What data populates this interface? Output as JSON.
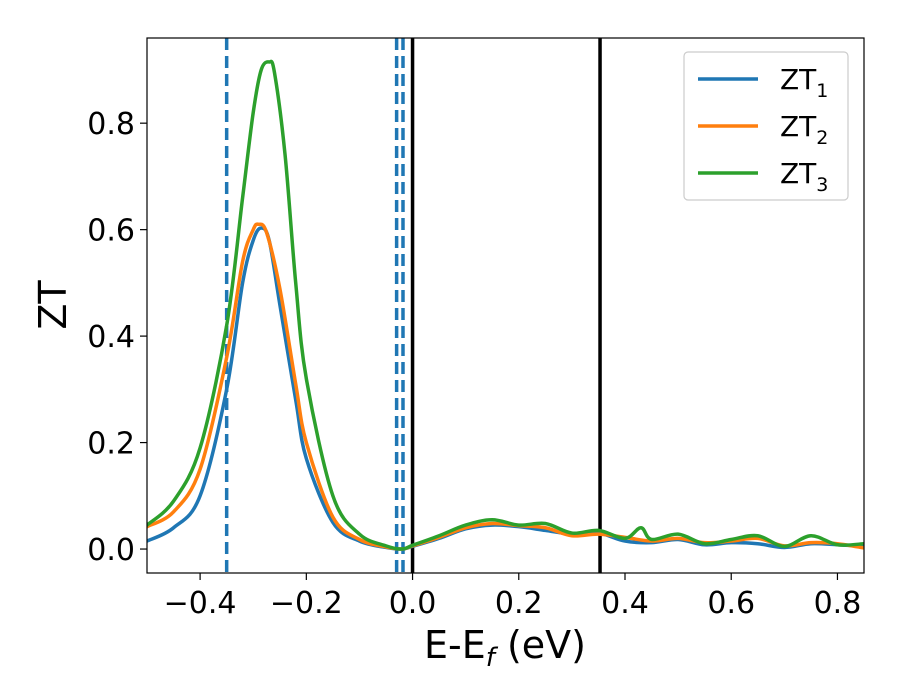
{
  "chart_data": {
    "type": "line",
    "xlabel": "E-E_f (eV)",
    "ylabel": "ZT",
    "xlim": [
      -0.5,
      0.85
    ],
    "ylim": [
      -0.045,
      0.96
    ],
    "x_ticks": [
      -0.4,
      -0.2,
      0.0,
      0.2,
      0.4,
      0.6,
      0.8
    ],
    "x_tick_labels": [
      "−0.4",
      "−0.2",
      "0.0",
      "0.2",
      "0.4",
      "0.6",
      "0.8"
    ],
    "y_ticks": [
      0.0,
      0.2,
      0.4,
      0.6,
      0.8
    ],
    "y_tick_labels": [
      "0.0",
      "0.2",
      "0.4",
      "0.6",
      "0.8"
    ],
    "grid": false,
    "legend_position": "top-right",
    "series": [
      {
        "name": "ZT_1",
        "label_main": "ZT",
        "label_sub": "1",
        "color": "#1f77b4",
        "points": [
          [
            -0.5,
            0.015
          ],
          [
            -0.45,
            0.04
          ],
          [
            -0.4,
            0.1
          ],
          [
            -0.35,
            0.3
          ],
          [
            -0.32,
            0.5
          ],
          [
            -0.3,
            0.58
          ],
          [
            -0.285,
            0.603
          ],
          [
            -0.27,
            0.58
          ],
          [
            -0.25,
            0.46
          ],
          [
            -0.22,
            0.28
          ],
          [
            -0.2,
            0.17
          ],
          [
            -0.15,
            0.05
          ],
          [
            -0.1,
            0.015
          ],
          [
            -0.05,
            0.003
          ],
          [
            -0.02,
            0.0
          ],
          [
            0.0,
            0.005
          ],
          [
            0.05,
            0.02
          ],
          [
            0.1,
            0.038
          ],
          [
            0.15,
            0.045
          ],
          [
            0.2,
            0.042
          ],
          [
            0.25,
            0.035
          ],
          [
            0.3,
            0.028
          ],
          [
            0.35,
            0.03
          ],
          [
            0.4,
            0.015
          ],
          [
            0.45,
            0.012
          ],
          [
            0.5,
            0.018
          ],
          [
            0.55,
            0.008
          ],
          [
            0.6,
            0.012
          ],
          [
            0.65,
            0.01
          ],
          [
            0.7,
            0.003
          ],
          [
            0.75,
            0.01
          ],
          [
            0.8,
            0.008
          ],
          [
            0.85,
            0.005
          ]
        ]
      },
      {
        "name": "ZT_2",
        "label_main": "ZT",
        "label_sub": "2",
        "color": "#ff7f0e",
        "points": [
          [
            -0.5,
            0.042
          ],
          [
            -0.45,
            0.07
          ],
          [
            -0.4,
            0.15
          ],
          [
            -0.35,
            0.36
          ],
          [
            -0.32,
            0.54
          ],
          [
            -0.3,
            0.6
          ],
          [
            -0.29,
            0.61
          ],
          [
            -0.275,
            0.595
          ],
          [
            -0.25,
            0.49
          ],
          [
            -0.22,
            0.31
          ],
          [
            -0.2,
            0.2
          ],
          [
            -0.15,
            0.06
          ],
          [
            -0.1,
            0.018
          ],
          [
            -0.05,
            0.004
          ],
          [
            -0.02,
            0.0
          ],
          [
            0.0,
            0.006
          ],
          [
            0.05,
            0.022
          ],
          [
            0.1,
            0.04
          ],
          [
            0.15,
            0.048
          ],
          [
            0.2,
            0.044
          ],
          [
            0.25,
            0.04
          ],
          [
            0.3,
            0.025
          ],
          [
            0.35,
            0.028
          ],
          [
            0.4,
            0.022
          ],
          [
            0.45,
            0.015
          ],
          [
            0.5,
            0.02
          ],
          [
            0.55,
            0.012
          ],
          [
            0.6,
            0.015
          ],
          [
            0.65,
            0.02
          ],
          [
            0.7,
            0.006
          ],
          [
            0.75,
            0.012
          ],
          [
            0.8,
            0.01
          ],
          [
            0.85,
            0.002
          ]
        ]
      },
      {
        "name": "ZT_3",
        "label_main": "ZT",
        "label_sub": "3",
        "color": "#2ca02c",
        "points": [
          [
            -0.5,
            0.045
          ],
          [
            -0.45,
            0.09
          ],
          [
            -0.4,
            0.19
          ],
          [
            -0.35,
            0.42
          ],
          [
            -0.32,
            0.66
          ],
          [
            -0.3,
            0.82
          ],
          [
            -0.285,
            0.9
          ],
          [
            -0.27,
            0.915
          ],
          [
            -0.26,
            0.895
          ],
          [
            -0.24,
            0.74
          ],
          [
            -0.22,
            0.5
          ],
          [
            -0.2,
            0.32
          ],
          [
            -0.15,
            0.1
          ],
          [
            -0.1,
            0.028
          ],
          [
            -0.05,
            0.006
          ],
          [
            -0.02,
            0.0
          ],
          [
            0.0,
            0.007
          ],
          [
            0.05,
            0.025
          ],
          [
            0.1,
            0.045
          ],
          [
            0.15,
            0.055
          ],
          [
            0.2,
            0.045
          ],
          [
            0.25,
            0.048
          ],
          [
            0.3,
            0.03
          ],
          [
            0.35,
            0.035
          ],
          [
            0.4,
            0.02
          ],
          [
            0.43,
            0.04
          ],
          [
            0.45,
            0.018
          ],
          [
            0.5,
            0.028
          ],
          [
            0.55,
            0.01
          ],
          [
            0.6,
            0.018
          ],
          [
            0.65,
            0.025
          ],
          [
            0.7,
            0.005
          ],
          [
            0.75,
            0.025
          ],
          [
            0.8,
            0.008
          ],
          [
            0.85,
            0.01
          ]
        ]
      }
    ],
    "vertical_lines": [
      {
        "x": -0.35,
        "style": "dashed",
        "color": "#1f77b4"
      },
      {
        "x": -0.03,
        "style": "dashed",
        "color": "#1f77b4"
      },
      {
        "x": -0.018,
        "style": "dashed",
        "color": "#1f77b4"
      },
      {
        "x": 0.0,
        "style": "solid",
        "color": "#000000"
      },
      {
        "x": 0.353,
        "style": "solid",
        "color": "#000000"
      }
    ]
  }
}
